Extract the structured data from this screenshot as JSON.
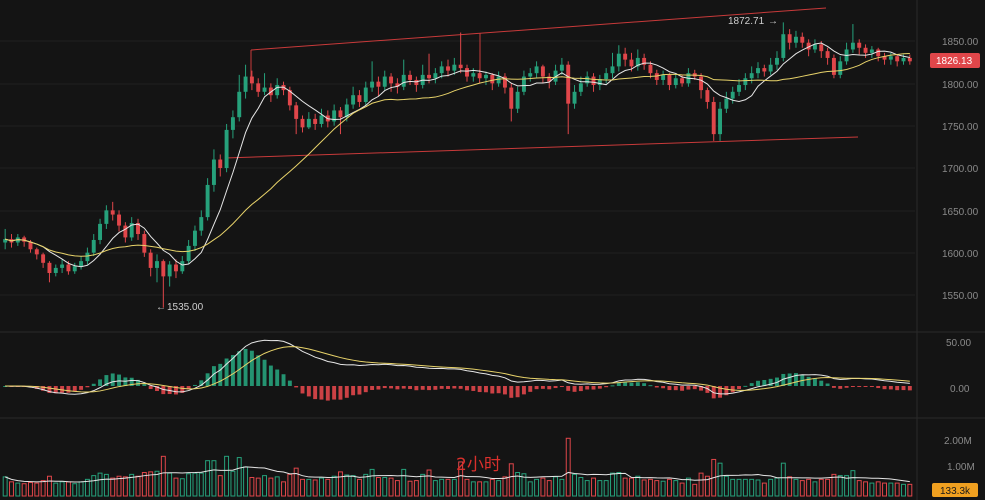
{
  "chart_data": {
    "type": "candlestick",
    "timeframe_label": "2小时",
    "price_axis": {
      "ticks": [
        "1850.00",
        "1800.00",
        "1750.00",
        "1700.00",
        "1650.00",
        "1600.00",
        "1550.00"
      ],
      "ylim": [
        1505,
        1900
      ]
    },
    "macd_axis": {
      "ticks": [
        "50.00",
        "0.00"
      ]
    },
    "volume_axis": {
      "ticks": [
        "2.00M",
        "1.00M"
      ]
    },
    "last_price": "1826.13",
    "last_volume": "133.3k",
    "annotations": {
      "high": "1872.71",
      "low": "1535.00"
    },
    "colors": {
      "up": "#26a17b",
      "down": "#e0464a",
      "ma_fast": "#e6e6e6",
      "ma_slow": "#e8d36a",
      "trendline": "#c83a3a",
      "price_tag": "#e0464a",
      "volume_tag": "#f0a020",
      "background": "#141414"
    },
    "candles": [
      {
        "o": 1612,
        "c": 1616,
        "h": 1628,
        "l": 1604
      },
      {
        "o": 1616,
        "c": 1612,
        "h": 1622,
        "l": 1606
      },
      {
        "o": 1612,
        "c": 1618,
        "h": 1622,
        "l": 1608
      },
      {
        "o": 1618,
        "c": 1613,
        "h": 1620,
        "l": 1607
      },
      {
        "o": 1613,
        "c": 1604,
        "h": 1615,
        "l": 1600
      },
      {
        "o": 1604,
        "c": 1598,
        "h": 1606,
        "l": 1592
      },
      {
        "o": 1598,
        "c": 1588,
        "h": 1600,
        "l": 1582
      },
      {
        "o": 1588,
        "c": 1576,
        "h": 1590,
        "l": 1565
      },
      {
        "o": 1576,
        "c": 1582,
        "h": 1586,
        "l": 1572
      },
      {
        "o": 1582,
        "c": 1586,
        "h": 1592,
        "l": 1576
      },
      {
        "o": 1586,
        "c": 1578,
        "h": 1590,
        "l": 1574
      },
      {
        "o": 1578,
        "c": 1584,
        "h": 1588,
        "l": 1575
      },
      {
        "o": 1584,
        "c": 1590,
        "h": 1596,
        "l": 1580
      },
      {
        "o": 1590,
        "c": 1600,
        "h": 1606,
        "l": 1586
      },
      {
        "o": 1600,
        "c": 1615,
        "h": 1622,
        "l": 1596
      },
      {
        "o": 1615,
        "c": 1634,
        "h": 1640,
        "l": 1610
      },
      {
        "o": 1634,
        "c": 1650,
        "h": 1656,
        "l": 1628
      },
      {
        "o": 1650,
        "c": 1645,
        "h": 1660,
        "l": 1638
      },
      {
        "o": 1645,
        "c": 1632,
        "h": 1650,
        "l": 1625
      },
      {
        "o": 1632,
        "c": 1618,
        "h": 1636,
        "l": 1612
      },
      {
        "o": 1618,
        "c": 1635,
        "h": 1642,
        "l": 1614
      },
      {
        "o": 1635,
        "c": 1622,
        "h": 1640,
        "l": 1615
      },
      {
        "o": 1622,
        "c": 1600,
        "h": 1626,
        "l": 1595
      },
      {
        "o": 1600,
        "c": 1582,
        "h": 1604,
        "l": 1572
      },
      {
        "o": 1582,
        "c": 1590,
        "h": 1598,
        "l": 1565
      },
      {
        "o": 1590,
        "c": 1572,
        "h": 1592,
        "l": 1535
      },
      {
        "o": 1572,
        "c": 1586,
        "h": 1590,
        "l": 1560
      },
      {
        "o": 1586,
        "c": 1578,
        "h": 1592,
        "l": 1570
      },
      {
        "o": 1578,
        "c": 1590,
        "h": 1596,
        "l": 1575
      },
      {
        "o": 1590,
        "c": 1608,
        "h": 1615,
        "l": 1586
      },
      {
        "o": 1608,
        "c": 1626,
        "h": 1632,
        "l": 1602
      },
      {
        "o": 1626,
        "c": 1642,
        "h": 1650,
        "l": 1620
      },
      {
        "o": 1642,
        "c": 1680,
        "h": 1688,
        "l": 1638
      },
      {
        "o": 1680,
        "c": 1710,
        "h": 1722,
        "l": 1672
      },
      {
        "o": 1710,
        "c": 1700,
        "h": 1716,
        "l": 1690
      },
      {
        "o": 1700,
        "c": 1745,
        "h": 1752,
        "l": 1695
      },
      {
        "o": 1745,
        "c": 1760,
        "h": 1768,
        "l": 1735
      },
      {
        "o": 1760,
        "c": 1790,
        "h": 1810,
        "l": 1755
      },
      {
        "o": 1790,
        "c": 1808,
        "h": 1822,
        "l": 1782
      },
      {
        "o": 1808,
        "c": 1800,
        "h": 1815,
        "l": 1792
      },
      {
        "o": 1800,
        "c": 1790,
        "h": 1806,
        "l": 1784
      },
      {
        "o": 1790,
        "c": 1795,
        "h": 1812,
        "l": 1786
      },
      {
        "o": 1795,
        "c": 1786,
        "h": 1800,
        "l": 1778
      },
      {
        "o": 1786,
        "c": 1798,
        "h": 1806,
        "l": 1782
      },
      {
        "o": 1798,
        "c": 1792,
        "h": 1802,
        "l": 1786
      },
      {
        "o": 1792,
        "c": 1774,
        "h": 1796,
        "l": 1768
      },
      {
        "o": 1774,
        "c": 1758,
        "h": 1778,
        "l": 1740
      },
      {
        "o": 1758,
        "c": 1748,
        "h": 1762,
        "l": 1742
      },
      {
        "o": 1748,
        "c": 1758,
        "h": 1766,
        "l": 1746
      },
      {
        "o": 1758,
        "c": 1752,
        "h": 1764,
        "l": 1745
      },
      {
        "o": 1752,
        "c": 1762,
        "h": 1770,
        "l": 1748
      },
      {
        "o": 1762,
        "c": 1755,
        "h": 1768,
        "l": 1748
      },
      {
        "o": 1755,
        "c": 1768,
        "h": 1775,
        "l": 1750
      },
      {
        "o": 1768,
        "c": 1760,
        "h": 1772,
        "l": 1740
      },
      {
        "o": 1760,
        "c": 1775,
        "h": 1782,
        "l": 1755
      },
      {
        "o": 1775,
        "c": 1786,
        "h": 1796,
        "l": 1770
      },
      {
        "o": 1786,
        "c": 1778,
        "h": 1792,
        "l": 1772
      },
      {
        "o": 1778,
        "c": 1795,
        "h": 1802,
        "l": 1774
      },
      {
        "o": 1795,
        "c": 1802,
        "h": 1826,
        "l": 1790
      },
      {
        "o": 1802,
        "c": 1796,
        "h": 1808,
        "l": 1785
      },
      {
        "o": 1796,
        "c": 1808,
        "h": 1815,
        "l": 1792
      },
      {
        "o": 1808,
        "c": 1800,
        "h": 1812,
        "l": 1790
      },
      {
        "o": 1800,
        "c": 1796,
        "h": 1806,
        "l": 1788
      },
      {
        "o": 1796,
        "c": 1810,
        "h": 1828,
        "l": 1792
      },
      {
        "o": 1810,
        "c": 1804,
        "h": 1815,
        "l": 1798
      },
      {
        "o": 1804,
        "c": 1798,
        "h": 1808,
        "l": 1790
      },
      {
        "o": 1798,
        "c": 1810,
        "h": 1822,
        "l": 1794
      },
      {
        "o": 1810,
        "c": 1806,
        "h": 1835,
        "l": 1800
      },
      {
        "o": 1806,
        "c": 1812,
        "h": 1818,
        "l": 1800
      },
      {
        "o": 1812,
        "c": 1820,
        "h": 1826,
        "l": 1806
      },
      {
        "o": 1820,
        "c": 1815,
        "h": 1828,
        "l": 1808
      },
      {
        "o": 1815,
        "c": 1822,
        "h": 1830,
        "l": 1810
      },
      {
        "o": 1822,
        "c": 1818,
        "h": 1860,
        "l": 1812
      },
      {
        "o": 1818,
        "c": 1808,
        "h": 1822,
        "l": 1802
      },
      {
        "o": 1808,
        "c": 1812,
        "h": 1818,
        "l": 1802
      },
      {
        "o": 1812,
        "c": 1806,
        "h": 1816,
        "l": 1800
      },
      {
        "o": 1806,
        "c": 1810,
        "h": 1814,
        "l": 1798
      },
      {
        "o": 1810,
        "c": 1800,
        "h": 1812,
        "l": 1792
      },
      {
        "o": 1800,
        "c": 1808,
        "h": 1814,
        "l": 1796
      },
      {
        "o": 1808,
        "c": 1795,
        "h": 1812,
        "l": 1788
      },
      {
        "o": 1795,
        "c": 1770,
        "h": 1800,
        "l": 1755
      },
      {
        "o": 1770,
        "c": 1790,
        "h": 1796,
        "l": 1765
      },
      {
        "o": 1790,
        "c": 1808,
        "h": 1815,
        "l": 1786
      },
      {
        "o": 1808,
        "c": 1812,
        "h": 1818,
        "l": 1802
      },
      {
        "o": 1812,
        "c": 1820,
        "h": 1826,
        "l": 1806
      },
      {
        "o": 1820,
        "c": 1808,
        "h": 1822,
        "l": 1800
      },
      {
        "o": 1808,
        "c": 1802,
        "h": 1812,
        "l": 1794
      },
      {
        "o": 1802,
        "c": 1815,
        "h": 1822,
        "l": 1798
      },
      {
        "o": 1815,
        "c": 1822,
        "h": 1830,
        "l": 1810
      },
      {
        "o": 1822,
        "c": 1776,
        "h": 1826,
        "l": 1740
      },
      {
        "o": 1776,
        "c": 1790,
        "h": 1798,
        "l": 1770
      },
      {
        "o": 1790,
        "c": 1800,
        "h": 1808,
        "l": 1785
      },
      {
        "o": 1800,
        "c": 1808,
        "h": 1814,
        "l": 1796
      },
      {
        "o": 1808,
        "c": 1798,
        "h": 1812,
        "l": 1790
      },
      {
        "o": 1798,
        "c": 1805,
        "h": 1810,
        "l": 1792
      },
      {
        "o": 1805,
        "c": 1812,
        "h": 1818,
        "l": 1800
      },
      {
        "o": 1812,
        "c": 1820,
        "h": 1836,
        "l": 1806
      },
      {
        "o": 1820,
        "c": 1835,
        "h": 1845,
        "l": 1814
      },
      {
        "o": 1835,
        "c": 1828,
        "h": 1842,
        "l": 1820
      },
      {
        "o": 1828,
        "c": 1820,
        "h": 1836,
        "l": 1814
      },
      {
        "o": 1820,
        "c": 1830,
        "h": 1840,
        "l": 1815
      },
      {
        "o": 1830,
        "c": 1822,
        "h": 1835,
        "l": 1816
      },
      {
        "o": 1822,
        "c": 1812,
        "h": 1826,
        "l": 1806
      },
      {
        "o": 1812,
        "c": 1804,
        "h": 1816,
        "l": 1798
      },
      {
        "o": 1804,
        "c": 1810,
        "h": 1815,
        "l": 1798
      },
      {
        "o": 1810,
        "c": 1798,
        "h": 1812,
        "l": 1792
      },
      {
        "o": 1798,
        "c": 1806,
        "h": 1812,
        "l": 1794
      },
      {
        "o": 1806,
        "c": 1800,
        "h": 1810,
        "l": 1796
      },
      {
        "o": 1800,
        "c": 1812,
        "h": 1818,
        "l": 1796
      },
      {
        "o": 1812,
        "c": 1808,
        "h": 1816,
        "l": 1804
      },
      {
        "o": 1808,
        "c": 1792,
        "h": 1812,
        "l": 1782
      },
      {
        "o": 1792,
        "c": 1778,
        "h": 1795,
        "l": 1770
      },
      {
        "o": 1778,
        "c": 1740,
        "h": 1784,
        "l": 1732
      },
      {
        "o": 1740,
        "c": 1770,
        "h": 1778,
        "l": 1732
      },
      {
        "o": 1770,
        "c": 1782,
        "h": 1790,
        "l": 1765
      },
      {
        "o": 1782,
        "c": 1790,
        "h": 1796,
        "l": 1776
      },
      {
        "o": 1790,
        "c": 1798,
        "h": 1805,
        "l": 1785
      },
      {
        "o": 1798,
        "c": 1806,
        "h": 1812,
        "l": 1792
      },
      {
        "o": 1806,
        "c": 1812,
        "h": 1820,
        "l": 1800
      },
      {
        "o": 1812,
        "c": 1818,
        "h": 1825,
        "l": 1806
      },
      {
        "o": 1818,
        "c": 1814,
        "h": 1822,
        "l": 1808
      },
      {
        "o": 1814,
        "c": 1822,
        "h": 1830,
        "l": 1810
      },
      {
        "o": 1822,
        "c": 1830,
        "h": 1838,
        "l": 1816
      },
      {
        "o": 1830,
        "c": 1858,
        "h": 1872,
        "l": 1826
      },
      {
        "o": 1858,
        "c": 1848,
        "h": 1864,
        "l": 1840
      },
      {
        "o": 1848,
        "c": 1855,
        "h": 1862,
        "l": 1842
      },
      {
        "o": 1855,
        "c": 1848,
        "h": 1860,
        "l": 1842
      },
      {
        "o": 1848,
        "c": 1840,
        "h": 1852,
        "l": 1832
      },
      {
        "o": 1840,
        "c": 1846,
        "h": 1852,
        "l": 1836
      },
      {
        "o": 1846,
        "c": 1838,
        "h": 1850,
        "l": 1830
      },
      {
        "o": 1838,
        "c": 1830,
        "h": 1842,
        "l": 1822
      },
      {
        "o": 1830,
        "c": 1810,
        "h": 1834,
        "l": 1806
      },
      {
        "o": 1810,
        "c": 1826,
        "h": 1832,
        "l": 1806
      },
      {
        "o": 1826,
        "c": 1840,
        "h": 1848,
        "l": 1822
      },
      {
        "o": 1840,
        "c": 1848,
        "h": 1870,
        "l": 1836
      },
      {
        "o": 1848,
        "c": 1842,
        "h": 1852,
        "l": 1834
      },
      {
        "o": 1842,
        "c": 1836,
        "h": 1846,
        "l": 1830
      },
      {
        "o": 1836,
        "c": 1840,
        "h": 1844,
        "l": 1830
      },
      {
        "o": 1840,
        "c": 1832,
        "h": 1842,
        "l": 1826
      },
      {
        "o": 1832,
        "c": 1828,
        "h": 1836,
        "l": 1822
      },
      {
        "o": 1828,
        "c": 1832,
        "h": 1836,
        "l": 1822
      },
      {
        "o": 1832,
        "c": 1826,
        "h": 1834,
        "l": 1820
      },
      {
        "o": 1826,
        "c": 1830,
        "h": 1834,
        "l": 1822
      },
      {
        "o": 1830,
        "c": 1826,
        "h": 1834,
        "l": 1822
      }
    ]
  }
}
